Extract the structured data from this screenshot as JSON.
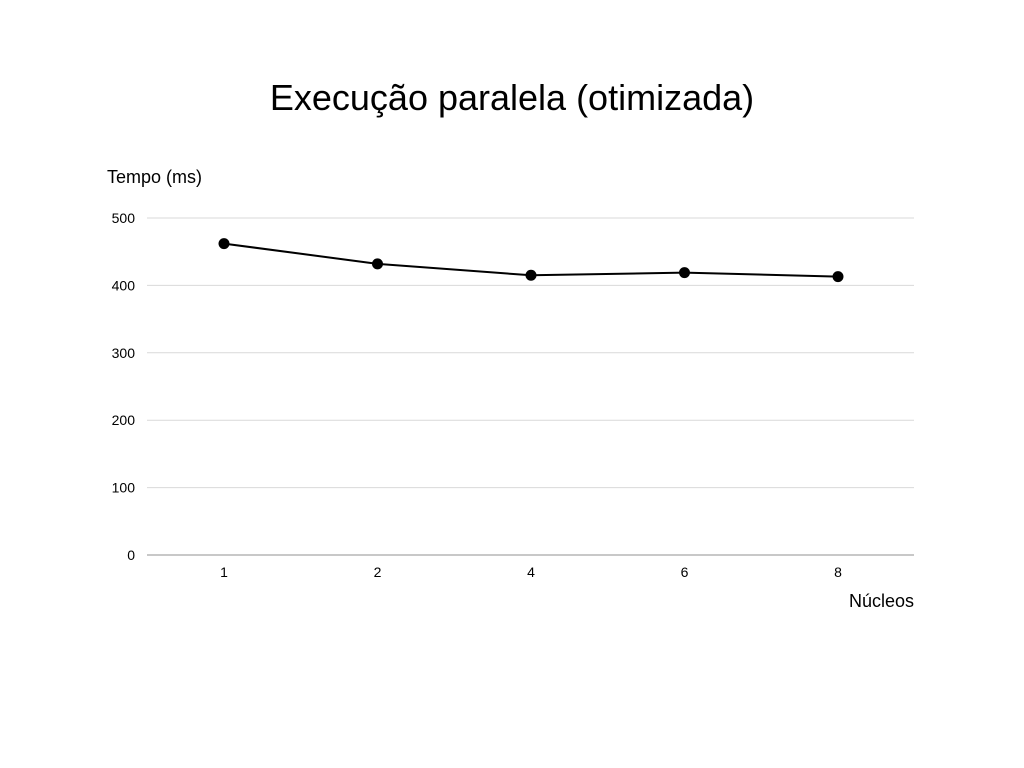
{
  "chart_data": {
    "type": "line",
    "title": "Execução paralela (otimizada)",
    "xlabel": "Núcleos",
    "ylabel": "Tempo (ms)",
    "categories": [
      "1",
      "2",
      "4",
      "6",
      "8"
    ],
    "series": [
      {
        "values": [
          462,
          432,
          415,
          419,
          413
        ]
      }
    ],
    "ylim": [
      0,
      500
    ],
    "yticks": [
      0,
      100,
      200,
      300,
      400,
      500
    ],
    "grid": true,
    "legend": "none",
    "colors": {
      "line": "#000000",
      "marker": "#000000",
      "grid": "#d9d9d9",
      "baseline": "#a6a6a6"
    }
  }
}
